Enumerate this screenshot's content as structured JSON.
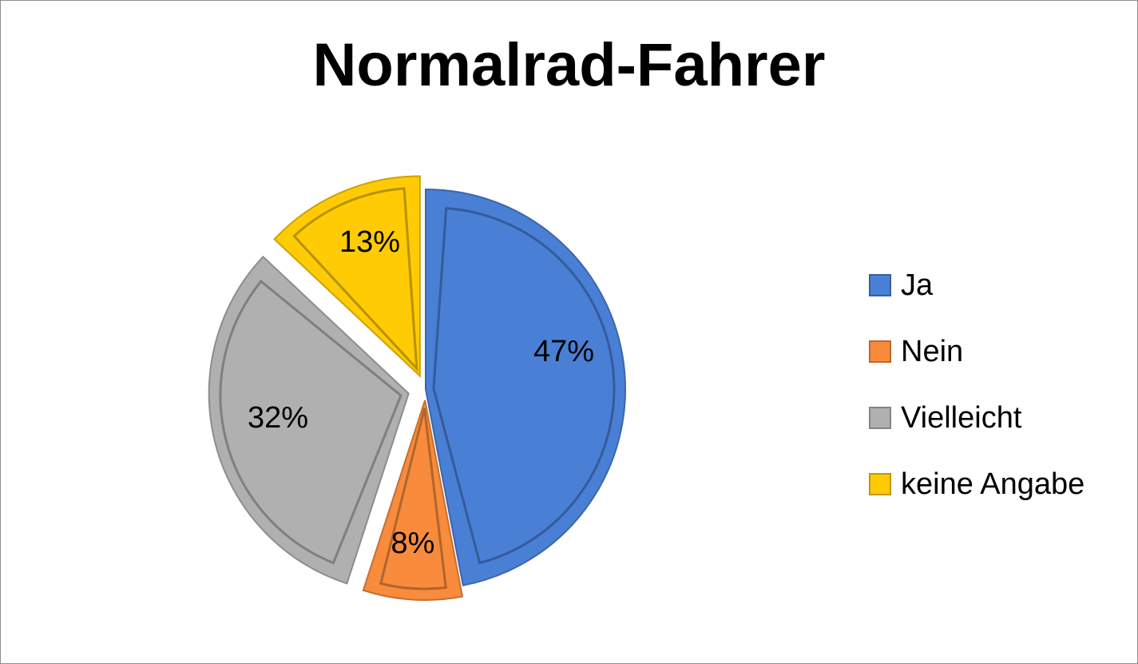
{
  "chart_data": {
    "type": "pie",
    "title": "Normalrad-Fahrer",
    "categories": [
      "Ja",
      "Nein",
      "Vielleicht",
      "keine Angabe"
    ],
    "values": [
      47,
      8,
      32,
      13
    ],
    "data_labels": [
      "47%",
      "8%",
      "32%",
      "13%"
    ],
    "colors": [
      "#4a7fd6",
      "#f88b3c",
      "#b0b0b0",
      "#ffcb05"
    ],
    "legend_placement": "right",
    "exploded": [
      "Nein",
      "Vielleicht",
      "keine Angabe"
    ]
  }
}
